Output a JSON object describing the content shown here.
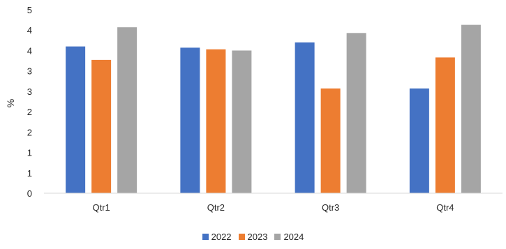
{
  "chart_data": {
    "type": "bar",
    "categories": [
      "Qtr1",
      "Qtr2",
      "Qtr3",
      "Qtr4"
    ],
    "series": [
      {
        "name": "2022",
        "color": "#4472C4",
        "values": [
          3.6,
          3.57,
          3.7,
          2.57
        ]
      },
      {
        "name": "2023",
        "color": "#ED7D31",
        "values": [
          3.27,
          3.53,
          2.57,
          3.33
        ]
      },
      {
        "name": "2024",
        "color": "#A5A5A5",
        "values": [
          4.07,
          3.5,
          3.93,
          4.13
        ]
      }
    ],
    "ytick_labels": [
      "0",
      "1",
      "1",
      "2",
      "2",
      "3",
      "3",
      "4",
      "4",
      "5"
    ],
    "ytick_values": [
      0,
      0.5,
      1,
      1.5,
      2,
      2.5,
      3,
      3.5,
      4,
      4.5
    ],
    "ylim": [
      0,
      4.5
    ],
    "title": "",
    "xlabel": "",
    "ylabel": "%",
    "grid": false,
    "legend": "bottom"
  }
}
